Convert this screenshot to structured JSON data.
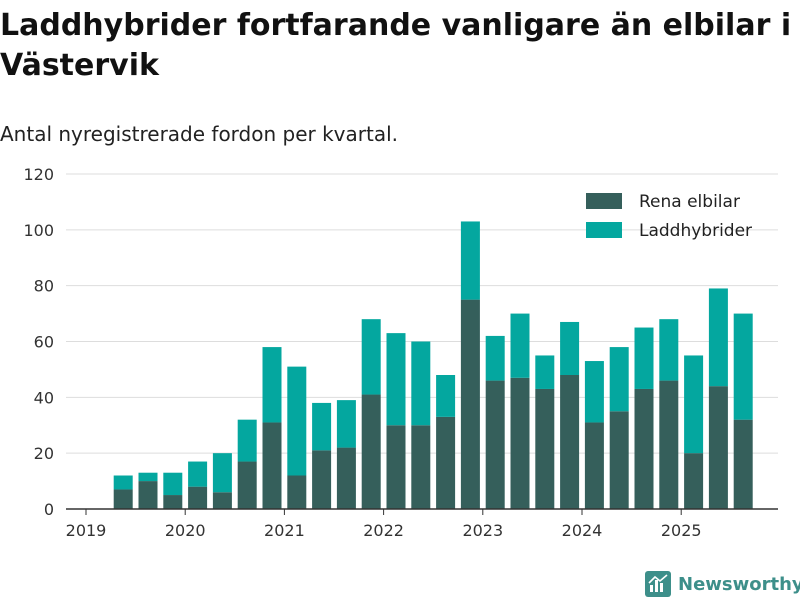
{
  "title": "Laddhybrider fortfarande vanligare än elbilar i Västervik",
  "subtitle": "Antal nyregistrerade fordon per kvartal.",
  "brand": {
    "name": "Newsworthy",
    "icon": "newsworthy-logo-icon"
  },
  "colors": {
    "rena_elbilar": "#355f5b",
    "laddhybrider": "#04a79f",
    "grid": "#dddddd",
    "axis": "#333333"
  },
  "chart_data": {
    "type": "bar",
    "stacked": true,
    "title": "Laddhybrider fortfarande vanligare än elbilar i Västervik",
    "subtitle": "Antal nyregistrerade fordon per kvartal.",
    "xlabel": "",
    "ylabel": "",
    "ylim": [
      0,
      120
    ],
    "yticks": [
      0,
      20,
      40,
      60,
      80,
      100,
      120
    ],
    "xticks": [
      "2019",
      "2020",
      "2021",
      "2022",
      "2023",
      "2024",
      "2025"
    ],
    "legend_position": "top-right",
    "categories": [
      "2019 Q2",
      "2019 Q3",
      "2019 Q4",
      "2020 Q1",
      "2020 Q2",
      "2020 Q3",
      "2020 Q4",
      "2021 Q1",
      "2021 Q2",
      "2021 Q3",
      "2021 Q4",
      "2022 Q1",
      "2022 Q2",
      "2022 Q3",
      "2022 Q4",
      "2023 Q1",
      "2023 Q2",
      "2023 Q3",
      "2023 Q4",
      "2024 Q1",
      "2024 Q2",
      "2024 Q3",
      "2024 Q4",
      "2025 Q1",
      "2025 Q2",
      "2025 Q3"
    ],
    "series": [
      {
        "name": "Rena elbilar",
        "values": [
          7,
          10,
          5,
          8,
          6,
          17,
          31,
          12,
          21,
          22,
          41,
          30,
          30,
          33,
          75,
          46,
          47,
          43,
          48,
          31,
          35,
          43,
          46,
          20,
          44,
          32
        ]
      },
      {
        "name": "Laddhybrider",
        "values": [
          5,
          3,
          8,
          9,
          14,
          15,
          27,
          39,
          17,
          17,
          27,
          33,
          30,
          15,
          28,
          16,
          23,
          12,
          19,
          22,
          23,
          22,
          22,
          35,
          35,
          38
        ]
      }
    ]
  }
}
